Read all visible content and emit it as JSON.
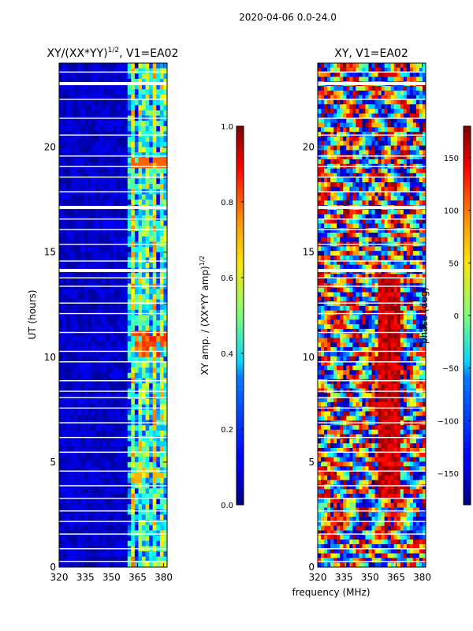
{
  "figure": {
    "suptitle": "2020-04-06 0.0-24.0"
  },
  "chart_data": [
    {
      "type": "heatmap",
      "title_main": "XY/(XX*YY)",
      "title_sup": "1/2",
      "title_rest": ", V1=EA02",
      "xlabel": "",
      "ylabel": "UT (hours)",
      "xlim": [
        320,
        382
      ],
      "ylim": [
        0,
        24
      ],
      "xticks": [
        "320",
        "335",
        "350",
        "365",
        "380"
      ],
      "xtick_values": [
        320,
        335,
        350,
        365,
        380
      ],
      "yticks": [
        "0",
        "5",
        "10",
        "15",
        "20"
      ],
      "ytick_values": [
        0,
        5,
        10,
        15,
        20
      ],
      "colorbar": {
        "label_main": "XY amp. / (XX*YY amp)",
        "label_sup": "1/2",
        "range": [
          0.0,
          1.0
        ],
        "ticks": [
          "0.0",
          "0.2",
          "0.4",
          "0.6",
          "0.8",
          "1.0"
        ],
        "tick_values": [
          0.0,
          0.2,
          0.4,
          0.6,
          0.8,
          1.0
        ]
      }
    },
    {
      "type": "heatmap",
      "title": "XY, V1=EA02",
      "xlabel": "frequency (MHz)",
      "ylabel": "",
      "xlim": [
        320,
        382
      ],
      "ylim": [
        0,
        24
      ],
      "xticks": [
        "320",
        "335",
        "350",
        "365",
        "380"
      ],
      "xtick_values": [
        320,
        335,
        350,
        365,
        380
      ],
      "yticks": [
        "0",
        "5",
        "10",
        "15",
        "20"
      ],
      "ytick_values": [
        0,
        5,
        10,
        15,
        20
      ],
      "colorbar": {
        "label": "phase (deg)",
        "range": [
          -180,
          180
        ],
        "ticks": [
          "−150",
          "−100",
          "−50",
          "0",
          "50",
          "100",
          "150"
        ],
        "tick_values": [
          -150,
          -100,
          -50,
          0,
          50,
          100,
          150
        ]
      }
    }
  ]
}
